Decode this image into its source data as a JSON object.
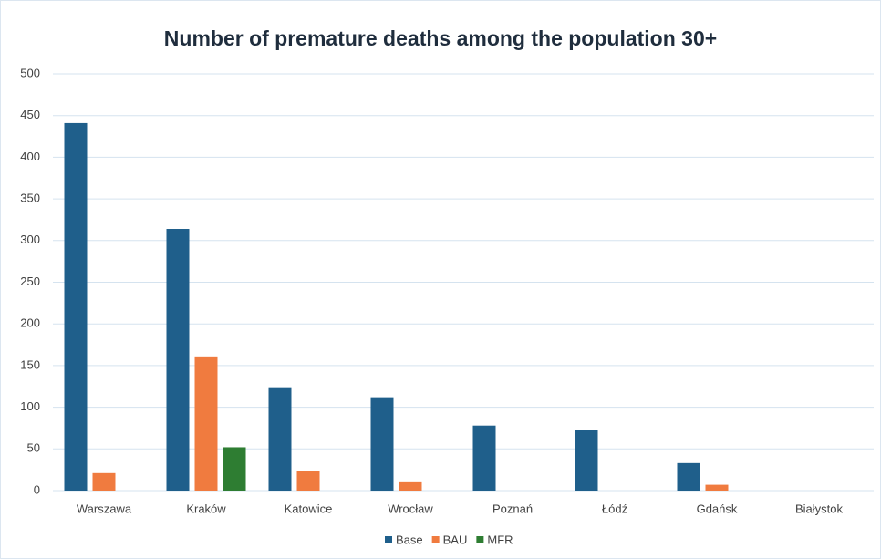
{
  "chart_data": {
    "type": "bar",
    "title": "Number of premature deaths among the population 30+",
    "categories": [
      "Warszawa",
      "Kraków",
      "Katowice",
      "Wrocław",
      "Poznań",
      "Łódź",
      "Gdańsk",
      "Białystok"
    ],
    "series": [
      {
        "name": "Base",
        "color": "#1f5f8b",
        "values": [
          441,
          314,
          124,
          112,
          78,
          73,
          33,
          0
        ]
      },
      {
        "name": "BAU",
        "color": "#f07b3f",
        "values": [
          21,
          161,
          24,
          10,
          0,
          0,
          7,
          0
        ]
      },
      {
        "name": "MFR",
        "color": "#2e7d32",
        "values": [
          0,
          52,
          0,
          0,
          0,
          0,
          0,
          0
        ]
      }
    ],
    "ylim": [
      0,
      500
    ],
    "yticks": [
      0,
      50,
      100,
      150,
      200,
      250,
      300,
      350,
      400,
      450,
      500
    ],
    "grid": true
  }
}
